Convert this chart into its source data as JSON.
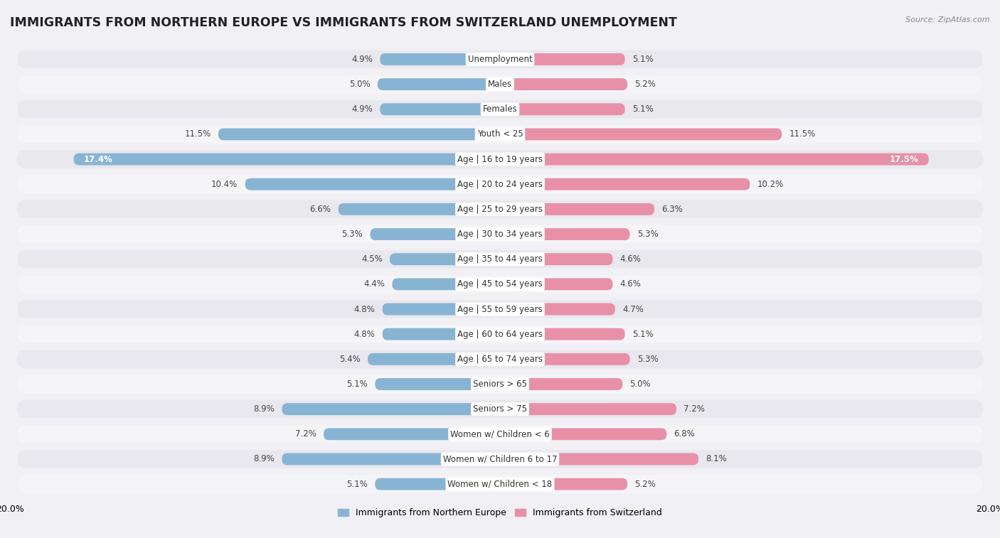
{
  "title": "IMMIGRANTS FROM NORTHERN EUROPE VS IMMIGRANTS FROM SWITZERLAND UNEMPLOYMENT",
  "source": "Source: ZipAtlas.com",
  "categories": [
    "Unemployment",
    "Males",
    "Females",
    "Youth < 25",
    "Age | 16 to 19 years",
    "Age | 20 to 24 years",
    "Age | 25 to 29 years",
    "Age | 30 to 34 years",
    "Age | 35 to 44 years",
    "Age | 45 to 54 years",
    "Age | 55 to 59 years",
    "Age | 60 to 64 years",
    "Age | 65 to 74 years",
    "Seniors > 65",
    "Seniors > 75",
    "Women w/ Children < 6",
    "Women w/ Children 6 to 17",
    "Women w/ Children < 18"
  ],
  "left_values": [
    4.9,
    5.0,
    4.9,
    11.5,
    17.4,
    10.4,
    6.6,
    5.3,
    4.5,
    4.4,
    4.8,
    4.8,
    5.4,
    5.1,
    8.9,
    7.2,
    8.9,
    5.1
  ],
  "right_values": [
    5.1,
    5.2,
    5.1,
    11.5,
    17.5,
    10.2,
    6.3,
    5.3,
    4.6,
    4.6,
    4.7,
    5.1,
    5.3,
    5.0,
    7.2,
    6.8,
    8.1,
    5.2
  ],
  "left_color": "#88b4d4",
  "right_color": "#e890a8",
  "axis_max": 20.0,
  "background_color": "#f0f0f5",
  "row_bg_odd": "#e8e8ee",
  "row_bg_even": "#f5f5f8",
  "label_bg": "#ffffff",
  "legend_left": "Immigrants from Northern Europe",
  "legend_right": "Immigrants from Switzerland",
  "title_fontsize": 12.5,
  "label_fontsize": 8.5,
  "value_fontsize": 8.5,
  "axis_label_only_ends": true,
  "x_end_label": "20.0%"
}
